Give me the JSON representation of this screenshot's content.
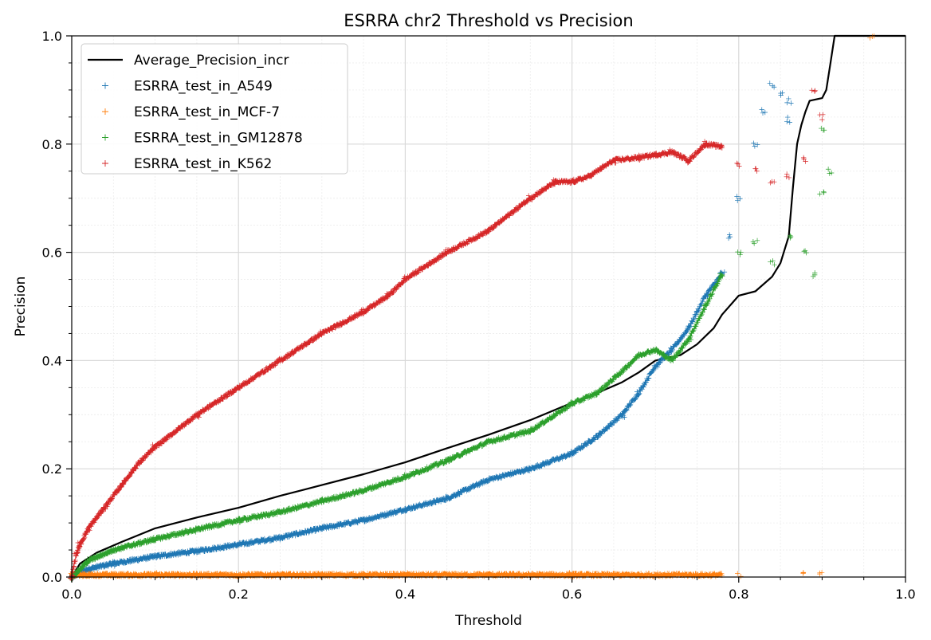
{
  "chart_data": {
    "type": "scatter",
    "title": "ESRRA chr2 Threshold vs Precision",
    "xlabel": "Threshold",
    "ylabel": "Precision",
    "xlim": [
      0,
      1
    ],
    "ylim": [
      0,
      1
    ],
    "xticks": [
      "0.0",
      "0.2",
      "0.4",
      "0.6",
      "0.8",
      "1.0"
    ],
    "yticks": [
      "0.0",
      "0.2",
      "0.4",
      "0.6",
      "0.8",
      "1.0"
    ],
    "grid": true,
    "minor_grid": true,
    "legend_position": "top-left",
    "series": [
      {
        "name": "Average_Precision_incr",
        "kind": "line",
        "color": "#000000",
        "points": [
          [
            0,
            0
          ],
          [
            0.01,
            0.025
          ],
          [
            0.03,
            0.045
          ],
          [
            0.06,
            0.065
          ],
          [
            0.1,
            0.09
          ],
          [
            0.15,
            0.11
          ],
          [
            0.2,
            0.128
          ],
          [
            0.25,
            0.15
          ],
          [
            0.3,
            0.17
          ],
          [
            0.35,
            0.19
          ],
          [
            0.4,
            0.212
          ],
          [
            0.45,
            0.238
          ],
          [
            0.5,
            0.263
          ],
          [
            0.55,
            0.29
          ],
          [
            0.6,
            0.322
          ],
          [
            0.63,
            0.34
          ],
          [
            0.66,
            0.36
          ],
          [
            0.68,
            0.378
          ],
          [
            0.7,
            0.4
          ],
          [
            0.73,
            0.41
          ],
          [
            0.75,
            0.43
          ],
          [
            0.77,
            0.46
          ],
          [
            0.78,
            0.485
          ],
          [
            0.8,
            0.52
          ],
          [
            0.82,
            0.528
          ],
          [
            0.84,
            0.555
          ],
          [
            0.85,
            0.58
          ],
          [
            0.86,
            0.63
          ],
          [
            0.865,
            0.72
          ],
          [
            0.87,
            0.8
          ],
          [
            0.875,
            0.835
          ],
          [
            0.88,
            0.86
          ],
          [
            0.885,
            0.88
          ],
          [
            0.9,
            0.885
          ],
          [
            0.905,
            0.9
          ],
          [
            0.91,
            0.95
          ],
          [
            0.915,
            1.0
          ],
          [
            1.0,
            1.0
          ]
        ]
      },
      {
        "name": "ESRRA_test_in_A549",
        "kind": "scatter",
        "color": "#1f77b4",
        "points": [
          [
            0,
            0
          ],
          [
            0.02,
            0.015
          ],
          [
            0.05,
            0.025
          ],
          [
            0.1,
            0.038
          ],
          [
            0.15,
            0.048
          ],
          [
            0.2,
            0.06
          ],
          [
            0.25,
            0.073
          ],
          [
            0.3,
            0.09
          ],
          [
            0.35,
            0.105
          ],
          [
            0.4,
            0.125
          ],
          [
            0.45,
            0.145
          ],
          [
            0.5,
            0.18
          ],
          [
            0.55,
            0.2
          ],
          [
            0.6,
            0.228
          ],
          [
            0.63,
            0.26
          ],
          [
            0.66,
            0.3
          ],
          [
            0.68,
            0.34
          ],
          [
            0.7,
            0.39
          ],
          [
            0.72,
            0.42
          ],
          [
            0.74,
            0.46
          ],
          [
            0.76,
            0.52
          ],
          [
            0.78,
            0.56
          ],
          [
            0.79,
            0.63
          ],
          [
            0.8,
            0.7
          ],
          [
            0.82,
            0.8
          ],
          [
            0.83,
            0.86
          ],
          [
            0.84,
            0.91
          ],
          [
            0.85,
            0.895
          ],
          [
            0.86,
            0.88
          ],
          [
            0.86,
            0.845
          ]
        ]
      },
      {
        "name": "ESRRA_test_in_MCF-7",
        "kind": "scatter",
        "color": "#ff7f0e",
        "points": [
          [
            0.0,
            0.004
          ],
          [
            0.1,
            0.004
          ],
          [
            0.2,
            0.004
          ],
          [
            0.3,
            0.004
          ],
          [
            0.4,
            0.004
          ],
          [
            0.5,
            0.004
          ],
          [
            0.6,
            0.004
          ],
          [
            0.7,
            0.004
          ],
          [
            0.8,
            0.004
          ],
          [
            0.88,
            0.004
          ],
          [
            0.9,
            0.004
          ],
          [
            0.96,
            1.0
          ]
        ]
      },
      {
        "name": "ESRRA_test_in_GM12878",
        "kind": "scatter",
        "color": "#2ca02c",
        "points": [
          [
            0,
            0
          ],
          [
            0.02,
            0.03
          ],
          [
            0.05,
            0.05
          ],
          [
            0.1,
            0.07
          ],
          [
            0.15,
            0.088
          ],
          [
            0.2,
            0.105
          ],
          [
            0.25,
            0.12
          ],
          [
            0.3,
            0.14
          ],
          [
            0.35,
            0.16
          ],
          [
            0.4,
            0.185
          ],
          [
            0.45,
            0.215
          ],
          [
            0.5,
            0.25
          ],
          [
            0.55,
            0.27
          ],
          [
            0.6,
            0.32
          ],
          [
            0.63,
            0.34
          ],
          [
            0.66,
            0.38
          ],
          [
            0.68,
            0.41
          ],
          [
            0.7,
            0.42
          ],
          [
            0.72,
            0.4
          ],
          [
            0.74,
            0.44
          ],
          [
            0.76,
            0.5
          ],
          [
            0.78,
            0.56
          ],
          [
            0.8,
            0.6
          ],
          [
            0.82,
            0.62
          ],
          [
            0.84,
            0.58
          ],
          [
            0.86,
            0.63
          ],
          [
            0.88,
            0.6
          ],
          [
            0.89,
            0.56
          ],
          [
            0.9,
            0.71
          ],
          [
            0.91,
            0.75
          ],
          [
            0.9,
            0.83
          ]
        ]
      },
      {
        "name": "ESRRA_test_in_K562",
        "kind": "scatter",
        "color": "#d62728",
        "points": [
          [
            0,
            0
          ],
          [
            0.005,
            0.04
          ],
          [
            0.01,
            0.06
          ],
          [
            0.02,
            0.09
          ],
          [
            0.04,
            0.13
          ],
          [
            0.06,
            0.17
          ],
          [
            0.08,
            0.21
          ],
          [
            0.1,
            0.24
          ],
          [
            0.15,
            0.3
          ],
          [
            0.2,
            0.35
          ],
          [
            0.25,
            0.4
          ],
          [
            0.3,
            0.45
          ],
          [
            0.35,
            0.49
          ],
          [
            0.38,
            0.52
          ],
          [
            0.4,
            0.55
          ],
          [
            0.45,
            0.6
          ],
          [
            0.5,
            0.64
          ],
          [
            0.55,
            0.7
          ],
          [
            0.58,
            0.73
          ],
          [
            0.6,
            0.73
          ],
          [
            0.62,
            0.74
          ],
          [
            0.65,
            0.77
          ],
          [
            0.68,
            0.775
          ],
          [
            0.7,
            0.78
          ],
          [
            0.72,
            0.785
          ],
          [
            0.74,
            0.77
          ],
          [
            0.76,
            0.8
          ],
          [
            0.78,
            0.795
          ],
          [
            0.8,
            0.76
          ],
          [
            0.82,
            0.75
          ],
          [
            0.84,
            0.73
          ],
          [
            0.86,
            0.74
          ],
          [
            0.88,
            0.77
          ],
          [
            0.89,
            0.9
          ],
          [
            0.9,
            0.85
          ]
        ]
      }
    ]
  }
}
